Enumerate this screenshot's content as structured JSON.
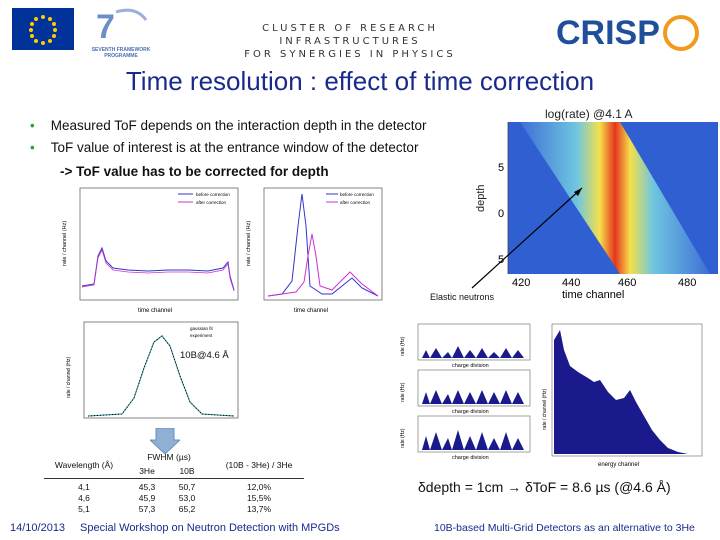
{
  "header": {
    "line1": "CLUSTER OF RESEARCH INFRASTRUCTURES",
    "line2": "FOR SYNERGIES IN PHYSICS",
    "fp7_line1": "SEVENTH FRAMEWORK",
    "fp7_line2": "PROGRAMME",
    "crisp_logo": "CRISP",
    "colors": {
      "eu_blue": "#003399",
      "eu_gold": "#ffcc00",
      "crisp_blue": "#1f4e9a"
    }
  },
  "slide": {
    "title": "Time resolution : effect of time correction",
    "bullets": [
      "Measured ToF depends on the interaction depth in the detector",
      "ToF value of interest is at the entrance window of the detector"
    ],
    "conclusion": "-> ToF value has to be corrected for depth"
  },
  "plots": {
    "left_legend": [
      "before correction",
      "after correction"
    ],
    "left_xlabel": "time channel",
    "left_ylabel": "rate / channel (Hz)",
    "right_xlabel": "time channel",
    "right_ylabel": "rate / channel (Hz)",
    "heatmap_title": "log(rate) @4.1 A",
    "heatmap_ylabel": "depth",
    "heatmap_xlabel": "time channel",
    "heatmap_xticks": [
      "420",
      "440",
      "460",
      "480"
    ],
    "heatmap_yticks": [
      "5",
      "0",
      "5"
    ],
    "elastic_label": "Elastic neutrons",
    "fit_legend": [
      "gaussian fit",
      "experiment"
    ],
    "fit_label": "10B@4.6 Å",
    "charge_ylabel": "rate (Hz)",
    "charge_xlabel": "charge division",
    "energy_ylabel": "rate / channel (Hz)",
    "energy_xlabel": "energy channel"
  },
  "table": {
    "col1_header": "Wavelength (Å)",
    "fwhm_header": "FWHM (µs)",
    "sub_he": "3He",
    "sub_b": "10B",
    "ratio_header": "(10B - 3He) / 3He",
    "rows": [
      {
        "wl": "4,1",
        "he": "45,3",
        "b": "50,7",
        "ratio": "12,0%"
      },
      {
        "wl": "4,6",
        "he": "45,9",
        "b": "53,0",
        "ratio": "15,5%"
      },
      {
        "wl": "5,1",
        "he": "57,3",
        "b": "65,2",
        "ratio": "13,7%"
      }
    ]
  },
  "formula": "δdepth = 1cm → δToF = 8.6 µs (@4.6 Å)",
  "footer": {
    "date": "14/10/2013",
    "workshop": "Special Workshop on Neutron Detection with MPGDs",
    "right": "10B-based Multi-Grid Detectors as an alternative to 3He"
  }
}
